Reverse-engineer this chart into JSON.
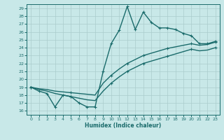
{
  "xlabel": "Humidex (Indice chaleur)",
  "bg_color": "#c8e8e8",
  "grid_color": "#aacccc",
  "line_color": "#1a6b6b",
  "xlim": [
    -0.5,
    23.5
  ],
  "ylim": [
    15.5,
    29.5
  ],
  "xticks": [
    0,
    1,
    2,
    3,
    4,
    5,
    6,
    7,
    8,
    9,
    10,
    11,
    12,
    13,
    14,
    15,
    16,
    17,
    18,
    19,
    20,
    21,
    22,
    23
  ],
  "yticks": [
    16,
    17,
    18,
    19,
    20,
    21,
    22,
    23,
    24,
    25,
    26,
    27,
    28,
    29
  ],
  "line1_x": [
    0,
    1,
    2,
    3,
    4,
    5,
    6,
    7,
    8,
    9,
    10,
    11,
    12,
    13,
    14,
    15,
    16,
    17,
    18,
    19,
    20,
    21,
    22,
    23
  ],
  "line1_y": [
    19.0,
    18.5,
    18.2,
    16.5,
    18.0,
    17.8,
    17.0,
    16.5,
    16.5,
    21.0,
    24.5,
    26.2,
    29.2,
    26.3,
    28.5,
    27.2,
    26.5,
    26.5,
    26.3,
    25.8,
    25.5,
    24.5,
    24.5,
    24.8
  ],
  "line2_x": [
    0,
    1,
    2,
    3,
    4,
    5,
    6,
    7,
    8,
    9,
    10,
    11,
    12,
    13,
    14,
    15,
    16,
    17,
    18,
    19,
    20,
    21,
    22,
    23
  ],
  "line2_y": [
    19.0,
    18.8,
    18.7,
    18.5,
    18.4,
    18.3,
    18.2,
    18.1,
    18.0,
    19.5,
    20.5,
    21.3,
    22.0,
    22.5,
    23.0,
    23.3,
    23.6,
    23.9,
    24.1,
    24.3,
    24.5,
    24.3,
    24.4,
    24.7
  ],
  "line3_x": [
    0,
    1,
    2,
    3,
    4,
    5,
    6,
    7,
    8,
    9,
    10,
    11,
    12,
    13,
    14,
    15,
    16,
    17,
    18,
    19,
    20,
    21,
    22,
    23
  ],
  "line3_y": [
    19.0,
    18.7,
    18.5,
    18.2,
    18.0,
    17.8,
    17.6,
    17.4,
    17.3,
    18.5,
    19.5,
    20.3,
    21.0,
    21.5,
    22.0,
    22.3,
    22.6,
    22.9,
    23.2,
    23.5,
    23.8,
    23.6,
    23.7,
    24.0
  ],
  "marker": "+",
  "marker_size": 3.5,
  "marker_every1": [
    0,
    1,
    2,
    3,
    4,
    5,
    6,
    7,
    8,
    9,
    10,
    11,
    12,
    13,
    14,
    15,
    16,
    17,
    18,
    19,
    20,
    21,
    22,
    23
  ],
  "marker_every2": [
    0,
    5,
    10,
    12,
    14,
    17,
    20,
    23
  ],
  "marker_every3": [
    0,
    5,
    10,
    12,
    14,
    17,
    20,
    23
  ],
  "line_width": 1.0
}
